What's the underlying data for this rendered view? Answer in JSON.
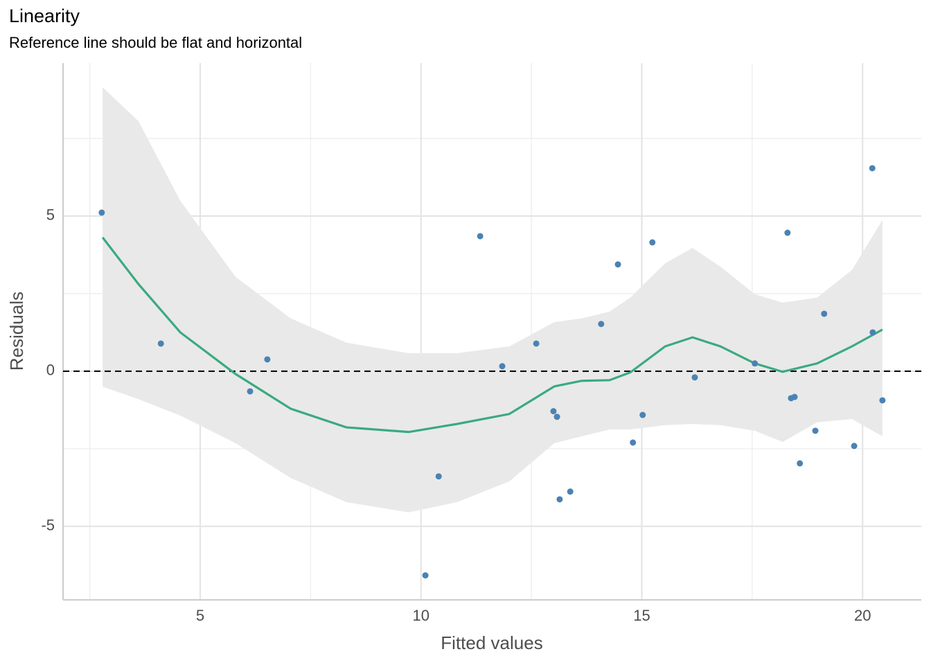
{
  "chart_data": {
    "type": "scatter",
    "title": "Linearity",
    "subtitle": "Reference line should be flat and horizontal",
    "x_label": "Fitted values",
    "y_label": "Residuals",
    "x": [
      2.77,
      4.11,
      6.13,
      6.52,
      10.1,
      10.4,
      11.34,
      11.84,
      12.61,
      13.0,
      13.08,
      13.14,
      13.38,
      14.08,
      14.46,
      14.8,
      15.02,
      15.24,
      16.2,
      17.56,
      18.3,
      18.38,
      18.46,
      18.58,
      18.93,
      19.13,
      19.81,
      20.22,
      20.23,
      20.45
    ],
    "values": [
      5.11,
      0.89,
      -0.65,
      0.38,
      -6.58,
      -3.39,
      4.35,
      0.16,
      0.89,
      -1.29,
      -1.47,
      -4.13,
      -3.88,
      1.52,
      3.44,
      -2.3,
      -1.41,
      4.15,
      -0.2,
      0.25,
      4.46,
      -0.87,
      -0.83,
      -2.97,
      -1.92,
      1.85,
      -2.41,
      6.54,
      1.25,
      -0.94
    ],
    "color": "#4a82b4",
    "smooth": {
      "x": [
        2.79,
        3.6,
        4.55,
        5.8,
        7.05,
        8.31,
        9.72,
        10.82,
        12.0,
        13.02,
        13.64,
        14.27,
        14.74,
        15.53,
        16.15,
        16.78,
        17.56,
        18.19,
        18.97,
        19.76,
        20.45
      ],
      "values": [
        4.31,
        2.81,
        1.25,
        -0.09,
        -1.21,
        -1.81,
        -1.96,
        -1.7,
        -1.38,
        -0.49,
        -0.31,
        -0.29,
        -0.04,
        0.8,
        1.09,
        0.8,
        0.25,
        -0.02,
        0.25,
        0.8,
        1.34
      ],
      "lower": [
        -0.5,
        -0.9,
        -1.43,
        -2.32,
        -3.44,
        -4.22,
        -4.55,
        -4.22,
        -3.55,
        -2.32,
        -2.1,
        -1.88,
        -1.88,
        -1.74,
        -1.7,
        -1.74,
        -1.92,
        -2.28,
        -1.65,
        -1.54,
        -2.1
      ],
      "upper": [
        9.15,
        8.06,
        5.49,
        3.04,
        1.7,
        0.92,
        0.58,
        0.58,
        0.8,
        1.58,
        1.7,
        1.92,
        2.37,
        3.48,
        3.97,
        3.37,
        2.48,
        2.21,
        2.37,
        3.26,
        4.87
      ],
      "color": "#3aaa80",
      "band_color": "#e9e9e9"
    },
    "reference_line": 0,
    "xlim": [
      1.894,
      21.33
    ],
    "ylim": [
      -7.37,
      9.93
    ],
    "xticks": [
      5,
      10,
      15,
      20
    ],
    "yticks": [
      -5,
      0,
      5
    ],
    "xminor": [
      2.5,
      7.5,
      12.5,
      17.5
    ],
    "yminor": [
      -2.5,
      2.5,
      7.5
    ],
    "grid": true
  }
}
